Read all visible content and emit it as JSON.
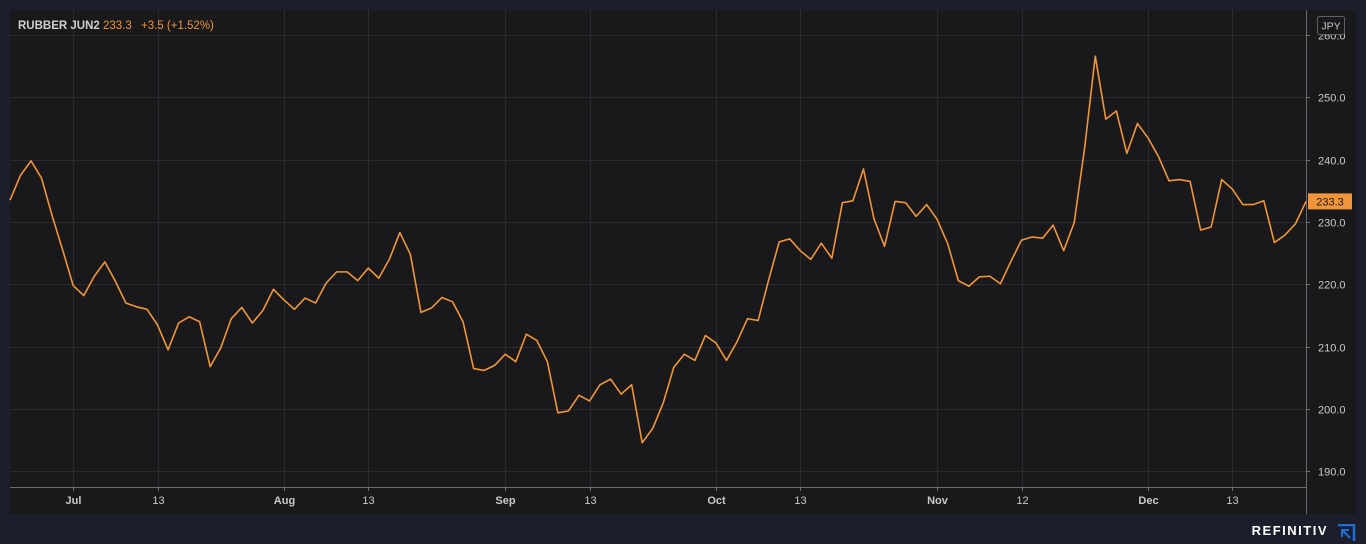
{
  "header": {
    "symbol": "RUBBER JUN2",
    "price": "233.3",
    "change": "+3.5 (+1.52%)"
  },
  "currency": "JPY",
  "last_price_tag": "233.3",
  "brand": "REFINITIV",
  "colors": {
    "background": "#1c1f2b",
    "plot": "#19191c",
    "line": "#f0953a",
    "grid": "#2b2b2f",
    "axis_text": "#c9c9c9"
  },
  "chart_data": {
    "type": "line",
    "title": "",
    "xlabel": "",
    "ylabel": "",
    "ylim": [
      187.5,
      264
    ],
    "x_range": [
      0,
      123
    ],
    "yticks": [
      190,
      200,
      210,
      220,
      230,
      240,
      250,
      260
    ],
    "ytick_labels": [
      "190.0",
      "200.0",
      "210.0",
      "220.0",
      "230.0",
      "240.0",
      "250.0",
      "260.0"
    ],
    "xticks": [
      {
        "label": "Jul",
        "x": 6
      },
      {
        "label": "13",
        "x": 14
      },
      {
        "label": "Aug",
        "x": 26
      },
      {
        "label": "13",
        "x": 34
      },
      {
        "label": "Sep",
        "x": 47
      },
      {
        "label": "13",
        "x": 55
      },
      {
        "label": "Oct",
        "x": 67
      },
      {
        "label": "13",
        "x": 75
      },
      {
        "label": "Nov",
        "x": 88
      },
      {
        "label": "12",
        "x": 96
      },
      {
        "label": "Dec",
        "x": 108
      },
      {
        "label": "13",
        "x": 116
      }
    ],
    "grid": true,
    "series": [
      {
        "values": [
          233.5,
          237.5,
          239.8,
          237,
          231,
          225.5,
          219.8,
          218.2,
          221.3,
          223.6,
          220.5,
          217,
          216.4,
          216,
          213.5,
          209.5,
          213.8,
          214.8,
          214,
          206.8,
          209.8,
          214.5,
          216.3,
          213.8,
          215.8,
          219.2,
          217.5,
          216,
          217.8,
          217,
          220.2,
          222,
          222,
          220.6,
          222.6,
          221,
          224,
          228.3,
          224.8,
          215.5,
          216.2,
          217.9,
          217.2,
          214,
          206.5,
          206.2,
          207,
          208.8,
          207.6,
          212,
          211,
          207.6,
          199.4,
          199.7,
          202.2,
          201.3,
          203.9,
          204.8,
          202.4,
          203.9,
          194.6,
          196.9,
          201,
          206.7,
          208.8,
          207.8,
          211.8,
          210.6,
          207.8,
          210.8,
          214.5,
          214.2,
          220.7,
          226.8,
          227.3,
          225.4,
          224,
          226.6,
          224.2,
          233.1,
          233.4,
          238.5,
          230.5,
          226.1,
          233.3,
          233.1,
          230.9,
          232.8,
          230.4,
          226.5,
          220.6,
          219.7,
          221.2,
          221.3,
          220.1,
          223.7,
          227.1,
          227.6,
          227.4,
          229.5,
          225.4,
          229.9,
          242,
          256.6,
          246.5,
          247.8,
          241,
          245.8,
          243.5,
          240.5,
          236.6,
          236.8,
          236.5,
          228.7,
          229.2,
          236.8,
          235.3,
          232.8,
          232.8,
          233.4,
          226.7,
          227.9,
          229.7,
          233.3
        ]
      }
    ]
  }
}
